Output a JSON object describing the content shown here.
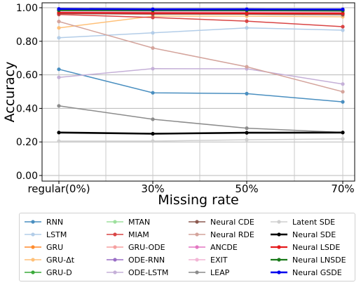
{
  "chart_data": {
    "type": "line",
    "title": "",
    "xlabel": "Missing rate",
    "ylabel": "Accuracy",
    "categories": [
      "regular(0%)",
      "30%",
      "50%",
      "70%"
    ],
    "ylim": [
      0.0,
      1.0
    ],
    "yticks": [
      "0.00",
      "0.20",
      "0.40",
      "0.60",
      "0.80",
      "1.00"
    ],
    "grid": true,
    "legend_position": "bottom",
    "series": [
      {
        "name": "RNN",
        "color": "#4a8fc0",
        "values": [
          0.633,
          0.493,
          0.488,
          0.439
        ]
      },
      {
        "name": "LSTM",
        "color": "#b3cde8",
        "values": [
          0.821,
          0.85,
          0.88,
          0.866
        ]
      },
      {
        "name": "GRU",
        "color": "#ff8c2e",
        "values": [
          0.98,
          0.98,
          0.975,
          0.972
        ]
      },
      {
        "name": "GRU-Δt",
        "color": "#ffc078",
        "values": [
          0.88,
          0.95,
          0.95,
          0.946
        ]
      },
      {
        "name": "GRU-D",
        "color": "#3aaa3a",
        "values": [
          0.985,
          0.983,
          0.982,
          0.98
        ]
      },
      {
        "name": "MTAN",
        "color": "#9ee09e",
        "values": [
          0.97,
          0.968,
          0.966,
          0.965
        ]
      },
      {
        "name": "MIAM",
        "color": "#d94545",
        "values": [
          0.96,
          0.942,
          0.92,
          0.887
        ]
      },
      {
        "name": "GRU-ODE",
        "color": "#f5a0a0",
        "values": [
          0.975,
          0.97,
          0.968,
          0.966
        ]
      },
      {
        "name": "ODE-RNN",
        "color": "#9a6fc6",
        "values": [
          0.99,
          0.988,
          0.987,
          0.985
        ]
      },
      {
        "name": "ODE-LSTM",
        "color": "#c5b0d8",
        "values": [
          0.585,
          0.637,
          0.636,
          0.545
        ]
      },
      {
        "name": "Neural CDE",
        "color": "#8c5a50",
        "values": [
          0.965,
          0.962,
          0.961,
          0.958
        ]
      },
      {
        "name": "Neural RDE",
        "color": "#d4a49c",
        "values": [
          0.918,
          0.76,
          0.648,
          0.499
        ]
      },
      {
        "name": "ANCDE",
        "color": "#e377c2",
        "values": [
          0.975,
          0.974,
          0.973,
          0.972
        ]
      },
      {
        "name": "EXIT",
        "color": "#f2b6d6",
        "values": [
          0.978,
          0.977,
          0.976,
          0.975
        ]
      },
      {
        "name": "LEAP",
        "color": "#8c8c8c",
        "values": [
          0.415,
          0.335,
          0.282,
          0.257
        ]
      },
      {
        "name": "Latent SDE",
        "color": "#cfcfcf",
        "values": [
          0.205,
          0.205,
          0.213,
          0.218
        ]
      },
      {
        "name": "Neural SDE",
        "color": "#000000",
        "values": [
          0.256,
          0.249,
          0.255,
          0.256
        ]
      },
      {
        "name": "Neural LSDE",
        "color": "#e41a1c",
        "values": [
          0.97,
          0.968,
          0.967,
          0.966
        ]
      },
      {
        "name": "Neural LNSDE",
        "color": "#1a7a1a",
        "values": [
          0.985,
          0.984,
          0.984,
          0.983
        ]
      },
      {
        "name": "Neural GSDE",
        "color": "#0000ee",
        "values": [
          0.993,
          0.991,
          0.991,
          0.99
        ]
      }
    ]
  }
}
